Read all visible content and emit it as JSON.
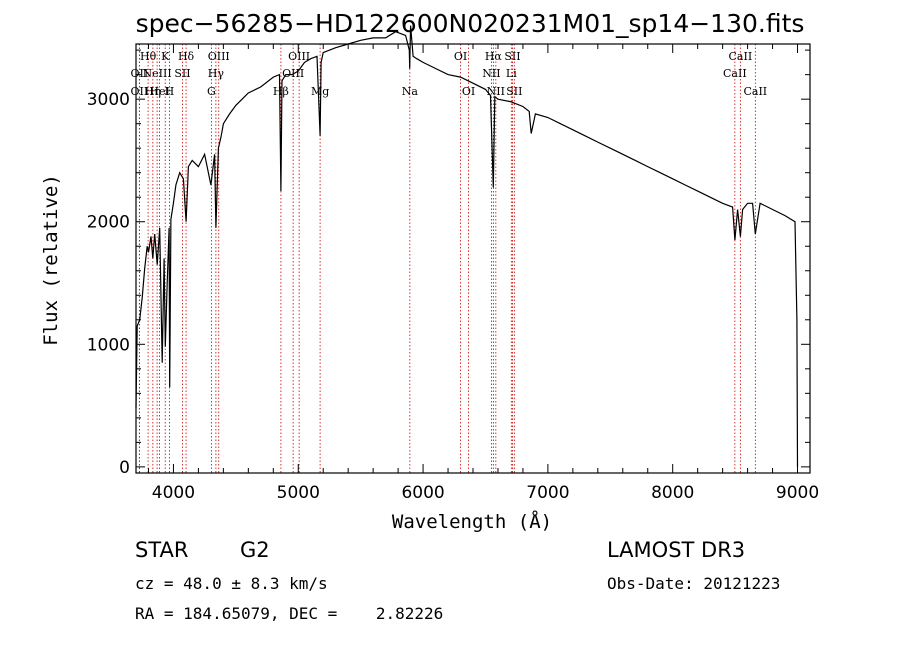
{
  "chart_data": {
    "type": "line",
    "title": "spec−56285−HD122600N020231M01_sp14−130.fits",
    "xlabel": "Wavelength (Å)",
    "ylabel": "Flux (relative)",
    "xlim": [
      3700,
      9100
    ],
    "ylim": [
      -50,
      3450
    ],
    "x_ticks": [
      4000,
      5000,
      6000,
      7000,
      8000,
      9000
    ],
    "x_tick_labels": [
      "4000",
      "5000",
      "6000",
      "7000",
      "8000",
      "9000"
    ],
    "y_ticks": [
      0,
      1000,
      2000,
      3000
    ],
    "y_tick_labels": [
      "0",
      "1000",
      "2000",
      "3000"
    ],
    "series": [
      {
        "name": "spectrum",
        "x": [
          3700,
          3710,
          3730,
          3750,
          3770,
          3790,
          3800,
          3820,
          3835,
          3850,
          3870,
          3890,
          3910,
          3925,
          3935,
          3950,
          3965,
          3970,
          3980,
          4000,
          4020,
          4050,
          4080,
          4101,
          4120,
          4150,
          4200,
          4250,
          4300,
          4330,
          4340,
          4360,
          4383,
          4400,
          4450,
          4500,
          4550,
          4600,
          4700,
          4800,
          4850,
          4861,
          4870,
          4900,
          4950,
          5000,
          5050,
          5100,
          5150,
          5175,
          5183,
          5200,
          5300,
          5400,
          5500,
          5600,
          5700,
          5780,
          5860,
          5890,
          5893,
          5896,
          5900,
          5920,
          5950,
          6000,
          6100,
          6200,
          6300,
          6400,
          6500,
          6540,
          6563,
          6575,
          6600,
          6700,
          6800,
          6850,
          6866,
          6900,
          7000,
          7100,
          7200,
          7300,
          7400,
          7500,
          7600,
          7700,
          7800,
          7900,
          8000,
          8100,
          8200,
          8300,
          8400,
          8480,
          8498,
          8520,
          8542,
          8560,
          8600,
          8640,
          8662,
          8700,
          8800,
          8900,
          8980,
          8995,
          9000
        ],
        "values": [
          480,
          1150,
          1200,
          1380,
          1620,
          1800,
          1750,
          1880,
          1700,
          1900,
          1650,
          1950,
          850,
          1700,
          980,
          1500,
          1950,
          650,
          2020,
          2150,
          2300,
          2400,
          2350,
          2000,
          2450,
          2500,
          2450,
          2550,
          2300,
          2550,
          1950,
          2600,
          2700,
          2800,
          2880,
          2950,
          3000,
          3050,
          3100,
          3180,
          3200,
          2250,
          3150,
          3200,
          3200,
          3230,
          3300,
          3330,
          3350,
          2700,
          3300,
          3380,
          3420,
          3450,
          3480,
          3500,
          3500,
          3550,
          3520,
          3400,
          3250,
          3420,
          3600,
          3350,
          3330,
          3300,
          3250,
          3200,
          3180,
          3130,
          3080,
          3030,
          2280,
          3020,
          3000,
          2980,
          2940,
          2900,
          2720,
          2880,
          2850,
          2800,
          2750,
          2700,
          2650,
          2600,
          2550,
          2500,
          2450,
          2400,
          2350,
          2300,
          2250,
          2200,
          2150,
          2120,
          1850,
          2100,
          1880,
          2100,
          2150,
          2150,
          1900,
          2150,
          2100,
          2050,
          2000,
          1200,
          0
        ]
      }
    ],
    "line_markers": [
      {
        "wavelength": 3797,
        "label": "Hθ",
        "row": 1
      },
      {
        "wavelength": 3727,
        "label": "OII",
        "row": 2
      },
      {
        "wavelength": 3727,
        "label": "OII",
        "row": 3
      },
      {
        "wavelength": 3835,
        "label": "Hη",
        "row": 3
      },
      {
        "wavelength": 3869,
        "label": "NeIII",
        "row": 2
      },
      {
        "wavelength": 3889,
        "label": "HeI",
        "row": 3
      },
      {
        "wavelength": 3934,
        "label": "K",
        "row": 1
      },
      {
        "wavelength": 3968,
        "label": "H",
        "row": 3
      },
      {
        "wavelength": 4072,
        "label": "SII",
        "row": 2
      },
      {
        "wavelength": 4101,
        "label": "Hδ",
        "row": 1
      },
      {
        "wavelength": 4304,
        "label": "G",
        "row": 3
      },
      {
        "wavelength": 4340,
        "label": "Hγ",
        "row": 2
      },
      {
        "wavelength": 4363,
        "label": "OIII",
        "row": 1
      },
      {
        "wavelength": 4861,
        "label": "Hβ",
        "row": 3
      },
      {
        "wavelength": 4959,
        "label": "OIII",
        "row": 2
      },
      {
        "wavelength": 5007,
        "label": "OIII",
        "row": 1
      },
      {
        "wavelength": 5175,
        "label": "Mg",
        "row": 3
      },
      {
        "wavelength": 5894,
        "label": "Na",
        "row": 3
      },
      {
        "wavelength": 6300,
        "label": "OI",
        "row": 1
      },
      {
        "wavelength": 6364,
        "label": "OI",
        "row": 3
      },
      {
        "wavelength": 6548,
        "label": "NII",
        "row": 2
      },
      {
        "wavelength": 6563,
        "label": "Hα",
        "row": 1
      },
      {
        "wavelength": 6583,
        "label": "NII",
        "row": 3
      },
      {
        "wavelength": 6707,
        "label": "Li",
        "row": 2
      },
      {
        "wavelength": 6716,
        "label": "SII",
        "row": 1
      },
      {
        "wavelength": 6731,
        "label": "SII",
        "row": 3
      },
      {
        "wavelength": 8498,
        "label": "CaII",
        "row": 2
      },
      {
        "wavelength": 8542,
        "label": "CaII",
        "row": 1
      },
      {
        "wavelength": 8662,
        "label": "CaII",
        "row": 3
      }
    ],
    "colors": {
      "spectrum": "#000000",
      "markers": "#cc0000",
      "axes": "#000000"
    }
  },
  "info": {
    "object_type": "STAR",
    "subclass": "G2",
    "survey": "LAMOST DR3",
    "redshift": "cz = 48.0 ± 8.3 km/s",
    "obs_date": "Obs-Date: 20121223",
    "coords": "RA = 184.65079, DEC =    2.82226"
  }
}
